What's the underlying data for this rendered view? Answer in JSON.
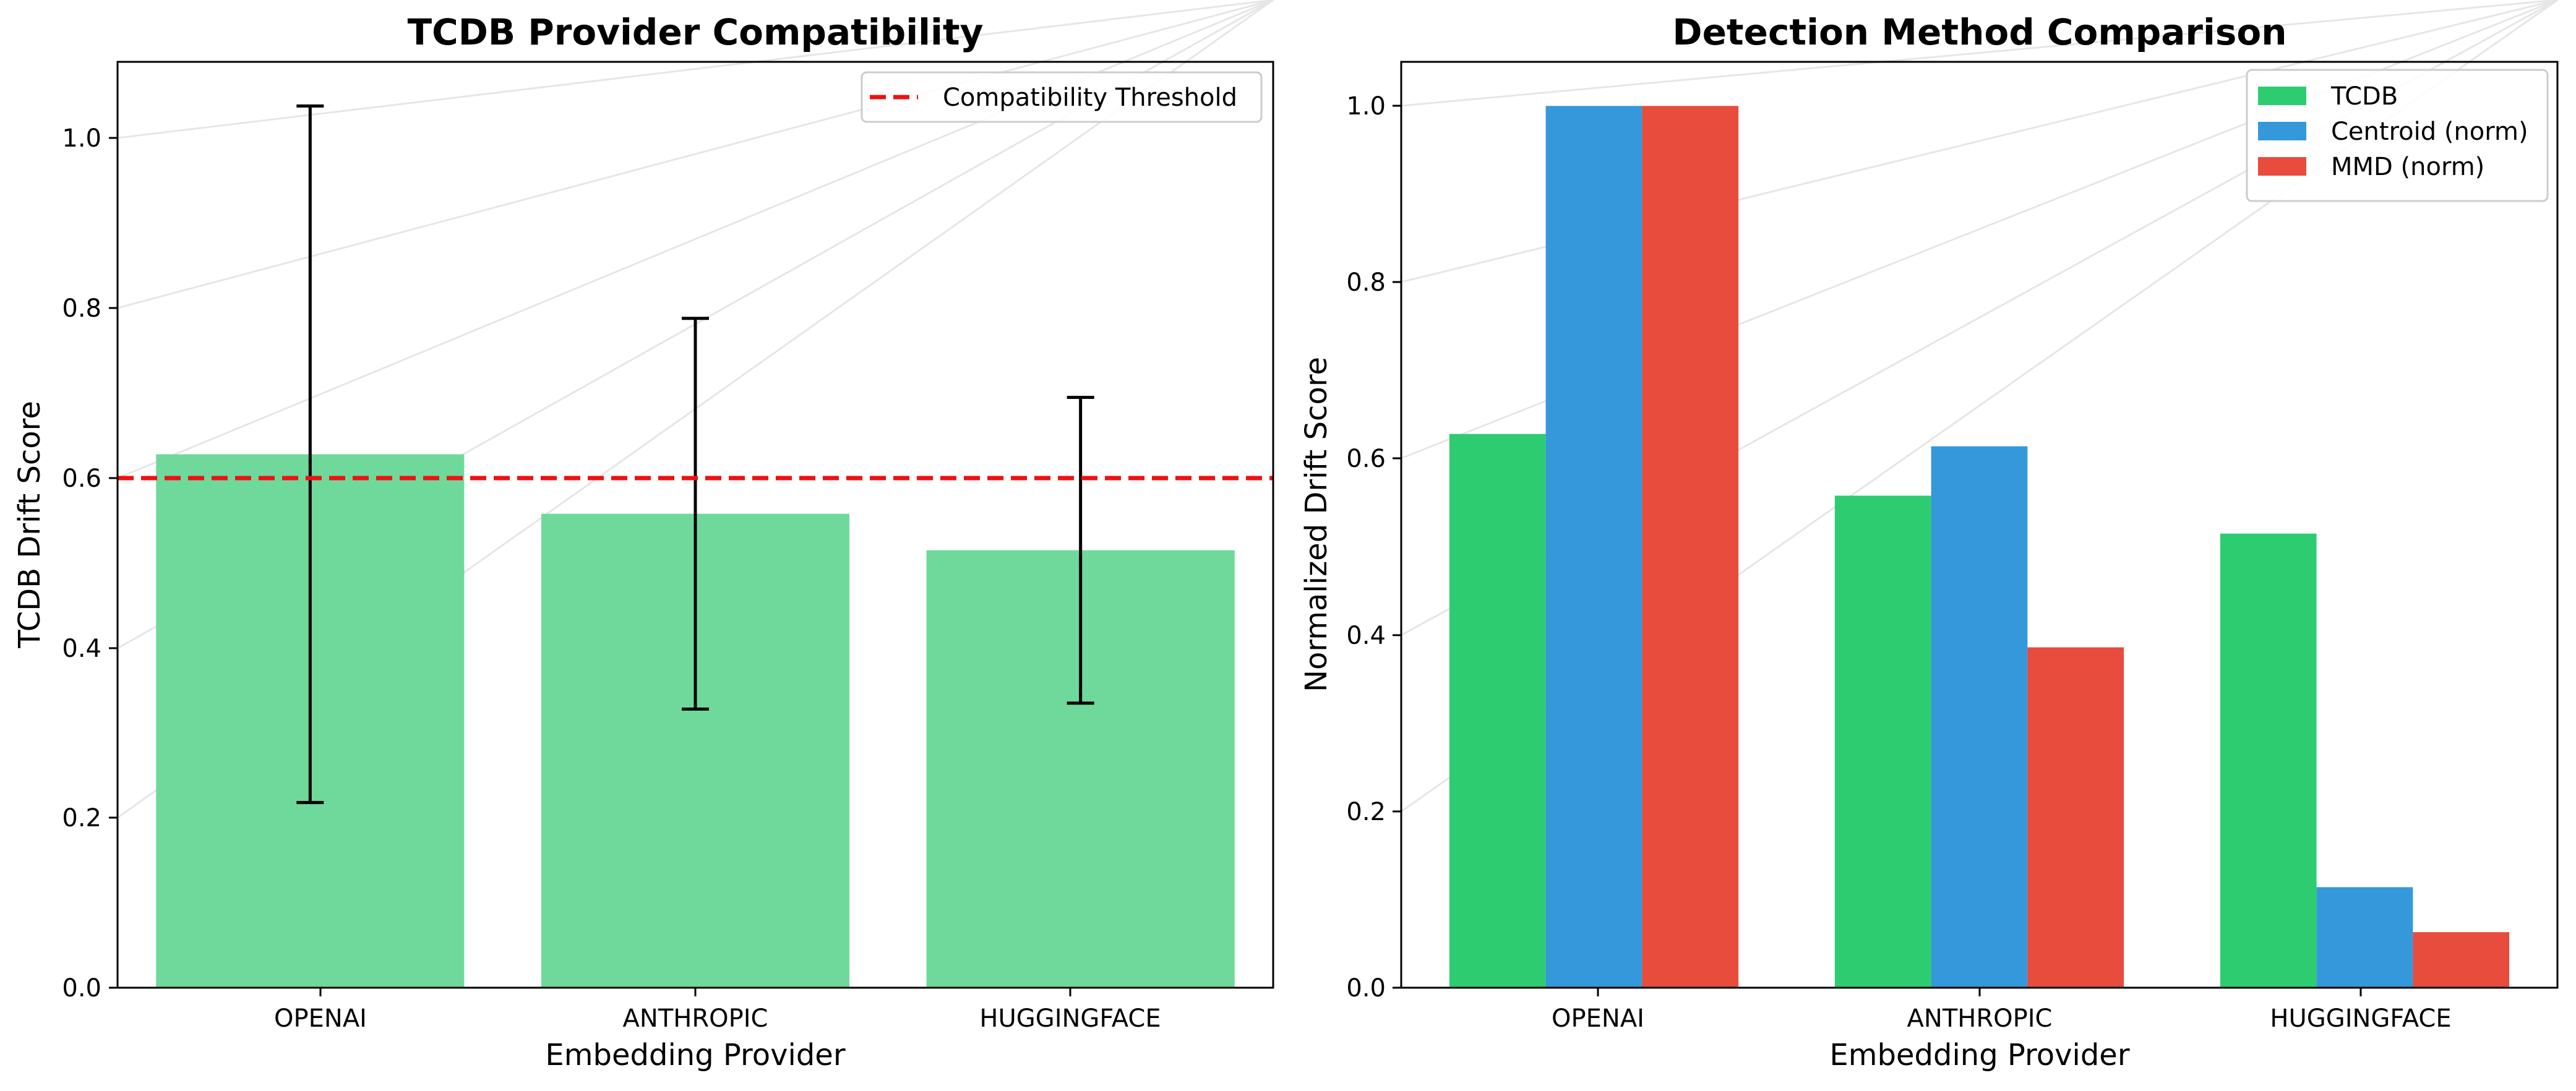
{
  "chart_data": [
    {
      "type": "bar",
      "title": "TCDB Provider Compatibility",
      "xlabel": "Embedding Provider",
      "ylabel": "TCDB Drift Score",
      "categories": [
        "OPENAI",
        "ANTHROPIC",
        "HUGGINGFACE"
      ],
      "series": [
        {
          "values": [
            0.628,
            0.558,
            0.515
          ],
          "error_low": [
            0.218,
            0.328,
            0.335
          ],
          "error_high": [
            1.038,
            0.788,
            0.695
          ],
          "color": "#6fd99b"
        }
      ],
      "reference_lines": [
        {
          "name": "Compatibility Threshold",
          "y": 0.6,
          "color": "#ee1111",
          "style": "dashed"
        }
      ],
      "ylim": [
        0,
        1.09
      ],
      "yticks": [
        0.0,
        0.2,
        0.4,
        0.6,
        0.8,
        1.0
      ],
      "ytick_labels": [
        "0.0",
        "0.2",
        "0.4",
        "0.6",
        "0.8",
        "1.0"
      ],
      "grid": "horizontal",
      "legend": "top-right"
    },
    {
      "type": "bar",
      "title": "Detection Method Comparison",
      "xlabel": "Embedding Provider",
      "ylabel": "Normalized Drift Score",
      "categories": [
        "OPENAI",
        "ANTHROPIC",
        "HUGGINGFACE"
      ],
      "series": [
        {
          "name": "TCDB",
          "values": [
            0.628,
            0.558,
            0.515
          ],
          "color": "#2ecc71"
        },
        {
          "name": "Centroid (norm)",
          "values": [
            1.0,
            0.614,
            0.114
          ],
          "color": "#3498db"
        },
        {
          "name": "MMD (norm)",
          "values": [
            1.0,
            0.386,
            0.063
          ],
          "color": "#e74c3c"
        }
      ],
      "ylim": [
        0,
        1.05
      ],
      "yticks": [
        0.0,
        0.2,
        0.4,
        0.6,
        0.8,
        1.0
      ],
      "ytick_labels": [
        "0.0",
        "0.2",
        "0.4",
        "0.6",
        "0.8",
        "1.0"
      ],
      "grid": "horizontal",
      "legend": "top-right"
    }
  ]
}
